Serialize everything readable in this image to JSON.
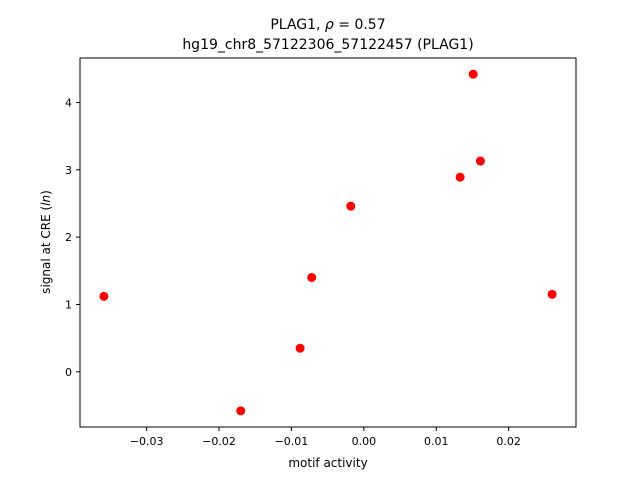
{
  "chart_data": {
    "type": "scatter",
    "title_line1_prefix": "PLAG1, ",
    "title_line1_rho": "ρ",
    "title_line1_suffix": " = 0.57",
    "title_line2": "hg19_chr8_57122306_57122457 (PLAG1)",
    "xlabel": "motif activity",
    "ylabel_prefix": "signal at CRE (",
    "ylabel_italic": "ln",
    "ylabel_suffix": ")",
    "xlim": [
      -0.0392,
      0.0293
    ],
    "ylim": [
      -0.82,
      4.66
    ],
    "xticks": [
      -0.03,
      -0.02,
      -0.01,
      0.0,
      0.01,
      0.02
    ],
    "xtick_labels": [
      "−0.03",
      "−0.02",
      "−0.01",
      "0.00",
      "0.01",
      "0.02"
    ],
    "yticks": [
      0,
      1,
      2,
      3,
      4
    ],
    "ytick_labels": [
      "0",
      "1",
      "2",
      "3",
      "4"
    ],
    "marker_color": "#ff0000",
    "grid": false,
    "points": [
      {
        "x": -0.0359,
        "y": 1.12
      },
      {
        "x": -0.017,
        "y": -0.58
      },
      {
        "x": -0.0088,
        "y": 0.35
      },
      {
        "x": -0.0072,
        "y": 1.4
      },
      {
        "x": -0.0018,
        "y": 2.46
      },
      {
        "x": 0.0133,
        "y": 2.89
      },
      {
        "x": 0.0151,
        "y": 4.42
      },
      {
        "x": 0.0161,
        "y": 3.13
      },
      {
        "x": 0.026,
        "y": 1.15
      }
    ]
  }
}
